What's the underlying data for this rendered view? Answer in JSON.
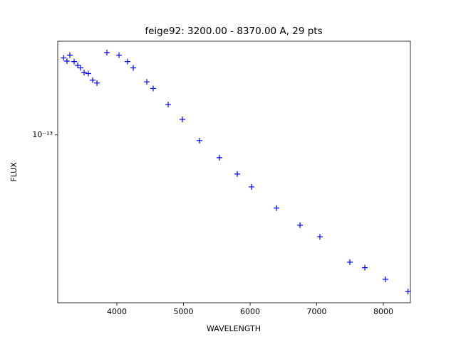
{
  "chart_data": {
    "type": "scatter",
    "title": "feige92: 3200.00 - 8370.00 A, 29 pts",
    "x_label": "WAVELENGTH",
    "y_label": "FLUX",
    "color": "#0000ff",
    "y_log": true,
    "x": [
      3200,
      3251,
      3294,
      3358,
      3412,
      3455,
      3508,
      3572,
      3636,
      3701,
      3850,
      4032,
      4160,
      4246,
      4449,
      4545,
      4770,
      4984,
      5241,
      5540,
      5807,
      6021,
      6396,
      6749,
      7048,
      7497,
      7722,
      8032,
      8370
    ],
    "values": [
      2.18e-13,
      2.11e-13,
      2.24e-13,
      2.1e-13,
      2.02e-13,
      1.97e-13,
      1.88e-13,
      1.86e-13,
      1.74e-13,
      1.69e-13,
      2.3e-13,
      2.24e-13,
      2.1e-13,
      1.97e-13,
      1.71e-13,
      1.6e-13,
      1.36e-13,
      1.17e-13,
      9.44e-14,
      7.94e-14,
      6.73e-14,
      5.91e-14,
      4.77e-14,
      4.01e-14,
      3.57e-14,
      2.76e-14,
      2.61e-14,
      2.32e-14,
      2.05e-14
    ],
    "xlim": [
      3112,
      8406
    ],
    "ylim": [
      1.83e-14,
      2.58e-13
    ],
    "xticks": [
      4000,
      5000,
      6000,
      7000,
      8000
    ],
    "yticks": [
      {
        "value": 1e-13,
        "label": "10⁻¹³"
      }
    ]
  }
}
